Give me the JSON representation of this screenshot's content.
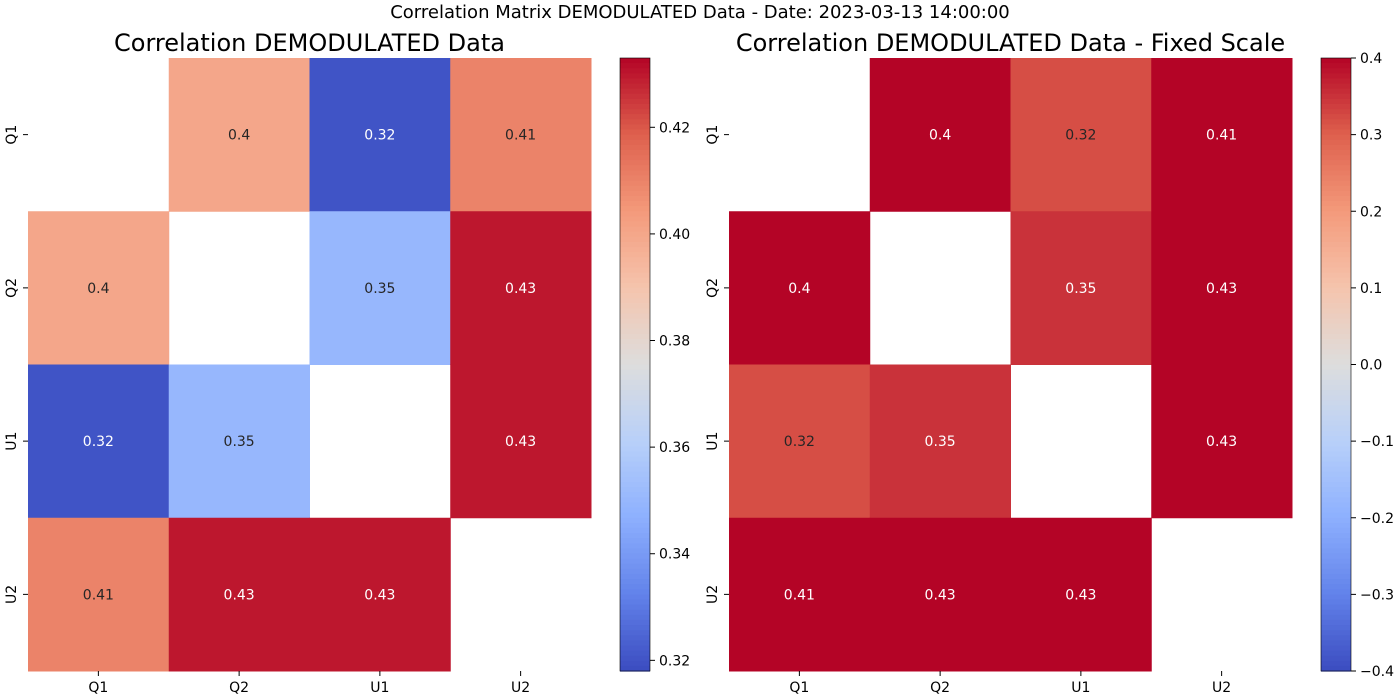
{
  "suptitle": "Correlation Matrix DEMODULATED Data - Date: 2023-03-13 14:00:00",
  "chart_data": [
    {
      "type": "heatmap",
      "title": "Correlation DEMODULATED Data",
      "row_labels": [
        "Q1",
        "Q2",
        "U1",
        "U2"
      ],
      "col_labels": [
        "Q1",
        "Q2",
        "U1",
        "U2"
      ],
      "values": [
        [
          null,
          0.4,
          0.32,
          0.41
        ],
        [
          0.4,
          null,
          0.35,
          0.43
        ],
        [
          0.32,
          0.35,
          null,
          0.43
        ],
        [
          0.41,
          0.43,
          0.43,
          null
        ]
      ],
      "labels": [
        [
          "",
          "0.4",
          "0.32",
          "0.41"
        ],
        [
          "0.4",
          "",
          "0.35",
          "0.43"
        ],
        [
          "0.32",
          "0.35",
          "",
          "0.43"
        ],
        [
          "0.41",
          "0.43",
          "0.43",
          ""
        ]
      ],
      "colormap": "coolwarm",
      "vmin": 0.318,
      "vmax": 0.433,
      "colorbar_ticks": [
        0.32,
        0.34,
        0.36,
        0.38,
        0.4,
        0.42
      ],
      "colorbar_tick_labels": [
        "0.32",
        "0.34",
        "0.36",
        "0.38",
        "0.40",
        "0.42"
      ]
    },
    {
      "type": "heatmap",
      "title": "Correlation DEMODULATED Data - Fixed Scale",
      "row_labels": [
        "Q1",
        "Q2",
        "U1",
        "U2"
      ],
      "col_labels": [
        "Q1",
        "Q2",
        "U1",
        "U2"
      ],
      "values": [
        [
          null,
          0.4,
          0.32,
          0.41
        ],
        [
          0.4,
          null,
          0.35,
          0.43
        ],
        [
          0.32,
          0.35,
          null,
          0.43
        ],
        [
          0.41,
          0.43,
          0.43,
          null
        ]
      ],
      "labels": [
        [
          "",
          "0.4",
          "0.32",
          "0.41"
        ],
        [
          "0.4",
          "",
          "0.35",
          "0.43"
        ],
        [
          "0.32",
          "0.35",
          "",
          "0.43"
        ],
        [
          "0.41",
          "0.43",
          "0.43",
          ""
        ]
      ],
      "colormap": "coolwarm",
      "vmin": -0.4,
      "vmax": 0.4,
      "colorbar_ticks": [
        -0.4,
        -0.3,
        -0.2,
        -0.1,
        0.0,
        0.1,
        0.2,
        0.3,
        0.4
      ],
      "colorbar_tick_labels": [
        "−0.4",
        "−0.3",
        "−0.2",
        "−0.1",
        "0.0",
        "0.1",
        "0.2",
        "0.3",
        "0.4"
      ]
    }
  ]
}
